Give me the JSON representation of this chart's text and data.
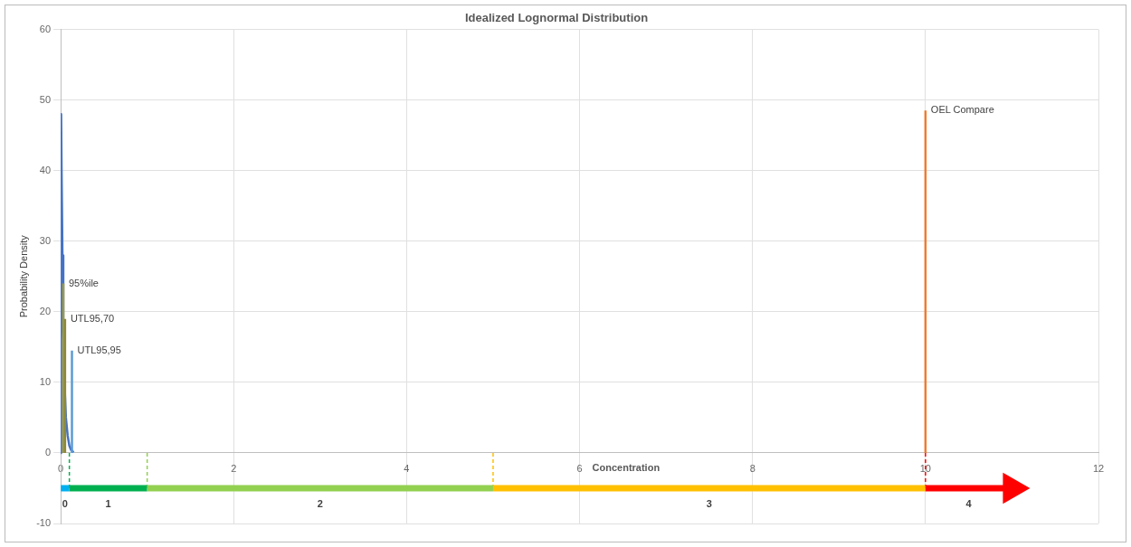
{
  "chart_data": {
    "type": "line",
    "title": "Idealized Lognormal Distribution",
    "xlabel": "Concentration",
    "ylabel": "Probability Density",
    "xlim": [
      0,
      12
    ],
    "ylim": [
      -10,
      60
    ],
    "xticks": [
      0,
      2,
      4,
      6,
      8,
      10,
      12
    ],
    "yticks": [
      -10,
      0,
      10,
      20,
      30,
      40,
      50,
      60
    ],
    "grid": true,
    "marker": "none",
    "series": [
      {
        "color": "#4472c4",
        "x": [
          0,
          0.005,
          0.01,
          0.02,
          0.03,
          0.04,
          0.06,
          0.08,
          0.1,
          0.12,
          0.15
        ],
        "values": [
          0,
          48,
          40,
          28,
          18,
          11,
          5,
          2.5,
          1,
          0.4,
          0.1
        ]
      },
      {
        "name": "95%ile",
        "color": "#a09a3c",
        "x": [
          0.03,
          0.03
        ],
        "values": [
          0,
          24
        ]
      },
      {
        "name": "UTL95,70",
        "color": "#8c8a3a",
        "x": [
          0.05,
          0.05
        ],
        "values": [
          0,
          19
        ]
      },
      {
        "name": "UTL95,95",
        "color": "#5b9bd5",
        "x": [
          0.13,
          0.13
        ],
        "values": [
          0,
          14.5
        ]
      },
      {
        "name": "OEL Compare",
        "color": "#ed7d31",
        "x": [
          10,
          10
        ],
        "values": [
          0,
          48.5
        ]
      },
      {
        "color": "#00b050",
        "line_style": "dashed",
        "x": [
          0.1,
          0.1
        ],
        "values": [
          0,
          -5
        ]
      },
      {
        "color": "#92d050",
        "line_style": "dashed",
        "x": [
          1,
          1
        ],
        "values": [
          0,
          -5
        ]
      },
      {
        "color": "#ffc000",
        "line_style": "dashed",
        "x": [
          5,
          5
        ],
        "values": [
          0,
          -5
        ]
      },
      {
        "color": "#ff0000",
        "line_style": "dashed",
        "x": [
          10,
          10
        ],
        "values": [
          0,
          -5
        ]
      },
      {
        "color": "#00b0f0",
        "x": [
          0,
          0.1
        ],
        "values": [
          -5,
          -5
        ]
      },
      {
        "color": "#00b050",
        "x": [
          0.1,
          1
        ],
        "values": [
          -5,
          -5
        ]
      },
      {
        "color": "#92d050",
        "x": [
          1,
          5
        ],
        "values": [
          -5,
          -5
        ]
      },
      {
        "color": "#ffc000",
        "x": [
          5,
          10
        ],
        "values": [
          -5,
          -5
        ]
      },
      {
        "color": "#ff0000",
        "marker": "triangle",
        "x": [
          10,
          11
        ],
        "values": [
          -5,
          -5
        ]
      }
    ],
    "annotations": [
      "0",
      "1",
      "2",
      "3",
      "4"
    ]
  }
}
